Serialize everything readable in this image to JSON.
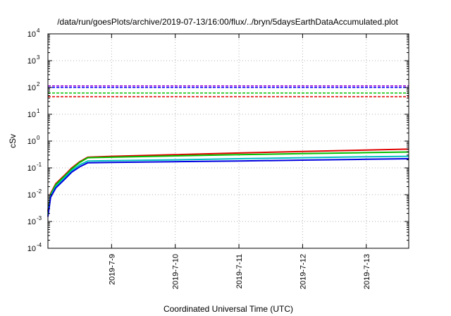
{
  "chart_data": {
    "type": "line",
    "title": "/data/run/goesPlots/archive/2019-07-13/16:00/flux/../bryn/5daysEarthDataAccumulated.plot",
    "xlabel": "Coordinated Universal Time (UTC)",
    "ylabel": "cSv",
    "yscale": "log",
    "ylim": [
      0.0001,
      10000
    ],
    "xlim": [
      "2019-07-08T00:00",
      "2019-07-13T16:00"
    ],
    "x_ticks": [
      "2019-7-9",
      "2019-7-10",
      "2019-7-11",
      "2019-7-12",
      "2019-7-13"
    ],
    "y_ticks": [
      {
        "base": "10",
        "exp": "-4",
        "value": 0.0001
      },
      {
        "base": "10",
        "exp": "-3",
        "value": 0.001
      },
      {
        "base": "10",
        "exp": "-2",
        "value": 0.01
      },
      {
        "base": "10",
        "exp": "-1",
        "value": 0.1
      },
      {
        "base": "10",
        "exp": "0",
        "value": 1
      },
      {
        "base": "10",
        "exp": "1",
        "value": 10
      },
      {
        "base": "10",
        "exp": "2",
        "value": 100
      },
      {
        "base": "10",
        "exp": "3",
        "value": 1000
      },
      {
        "base": "10",
        "exp": "4",
        "value": 10000
      }
    ],
    "grid": true,
    "thresholds": [
      {
        "value": 115,
        "color": "#9400d3"
      },
      {
        "value": 100,
        "color": "#0000ff"
      },
      {
        "value": 62,
        "color": "#00c000"
      },
      {
        "value": 45,
        "color": "#e00000"
      }
    ],
    "series": [
      {
        "color": "#e00000",
        "x": [
          "2019-07-08T00:00",
          "2019-07-08T01:00",
          "2019-07-08T03:00",
          "2019-07-08T06:00",
          "2019-07-08T09:00",
          "2019-07-08T12:00",
          "2019-07-08T15:00",
          "2019-07-09T00:00",
          "2019-07-10T00:00",
          "2019-07-11T00:00",
          "2019-07-12T00:00",
          "2019-07-13T00:00",
          "2019-07-13T16:00"
        ],
        "values": [
          0.0025,
          0.011,
          0.026,
          0.05,
          0.1,
          0.17,
          0.25,
          0.27,
          0.31,
          0.36,
          0.41,
          0.46,
          0.5
        ]
      },
      {
        "color": "#00c000",
        "x": [
          "2019-07-08T00:00",
          "2019-07-08T01:00",
          "2019-07-08T03:00",
          "2019-07-08T06:00",
          "2019-07-08T09:00",
          "2019-07-08T12:00",
          "2019-07-08T15:00",
          "2019-07-09T00:00",
          "2019-07-10T00:00",
          "2019-07-11T00:00",
          "2019-07-12T00:00",
          "2019-07-13T00:00",
          "2019-07-13T16:00"
        ],
        "values": [
          0.0022,
          0.01,
          0.024,
          0.046,
          0.092,
          0.16,
          0.24,
          0.25,
          0.28,
          0.31,
          0.34,
          0.37,
          0.39
        ]
      },
      {
        "color": "#00bfbf",
        "x": [
          "2019-07-08T00:00",
          "2019-07-08T01:00",
          "2019-07-08T03:00",
          "2019-07-08T06:00",
          "2019-07-08T09:00",
          "2019-07-08T12:00",
          "2019-07-08T15:00",
          "2019-07-09T00:00",
          "2019-07-10T00:00",
          "2019-07-11T00:00",
          "2019-07-12T00:00",
          "2019-07-13T00:00",
          "2019-07-13T16:00"
        ],
        "values": [
          0.0018,
          0.009,
          0.02,
          0.04,
          0.08,
          0.13,
          0.18,
          0.185,
          0.2,
          0.22,
          0.24,
          0.26,
          0.27
        ]
      },
      {
        "color": "#0000e0",
        "x": [
          "2019-07-08T00:00",
          "2019-07-08T01:00",
          "2019-07-08T03:00",
          "2019-07-08T06:00",
          "2019-07-08T09:00",
          "2019-07-08T12:00",
          "2019-07-08T15:00",
          "2019-07-09T00:00",
          "2019-07-10T00:00",
          "2019-07-11T00:00",
          "2019-07-12T00:00",
          "2019-07-13T00:00",
          "2019-07-13T16:00"
        ],
        "values": [
          0.0015,
          0.008,
          0.018,
          0.035,
          0.07,
          0.11,
          0.155,
          0.16,
          0.17,
          0.18,
          0.195,
          0.21,
          0.22
        ]
      }
    ]
  }
}
